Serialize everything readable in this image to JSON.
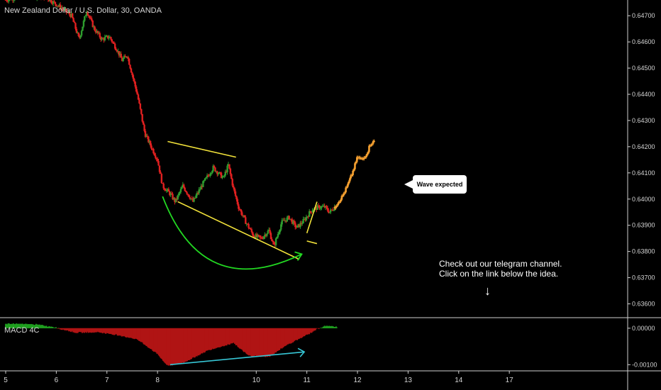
{
  "header": {
    "symbol": "New Zealand Dollar / U.S. Dollar, 30, OANDA"
  },
  "annotations": {
    "callout": "Wave expected",
    "note_line1": "Check out our telegram channel.",
    "note_line2": "Click on the link below the idea."
  },
  "colors": {
    "up": "#2e9e2e",
    "down": "#e02020",
    "projection": "#f5a030",
    "trendline": "#f2e23a",
    "curve": "#22d822",
    "divergence": "#37c7d6",
    "macd_pos": "#1f9e1f",
    "macd_neg": "#b01414",
    "grid": "#ffffff"
  },
  "icons": {
    "arrow": "down-arrow-icon"
  },
  "chart_data": [
    {
      "type": "candlestick",
      "title": "New Zealand Dollar / U.S. Dollar, 30, OANDA",
      "xlabel": "",
      "ylabel": "",
      "x_ticks": [
        "5",
        "6",
        "7",
        "8",
        "10",
        "11",
        "12",
        "13",
        "14",
        "17"
      ],
      "y_ticks": [
        "0.64700",
        "0.64600",
        "0.64500",
        "0.64400",
        "0.64300",
        "0.64200",
        "0.64100",
        "0.64000",
        "0.63900",
        "0.63800",
        "0.63700",
        "0.63600"
      ],
      "ylim": [
        0.6355,
        0.6476
      ],
      "xlim": [
        5,
        17.4
      ],
      "price_path": [
        [
          5.0,
          0.6476
        ],
        [
          5.4,
          0.6478
        ],
        [
          5.8,
          0.6477
        ],
        [
          6.1,
          0.6473
        ],
        [
          6.3,
          0.647
        ],
        [
          6.45,
          0.6461
        ],
        [
          6.6,
          0.6472
        ],
        [
          6.75,
          0.6465
        ],
        [
          6.9,
          0.6461
        ],
        [
          7.05,
          0.6462
        ],
        [
          7.2,
          0.6457
        ],
        [
          7.3,
          0.6453
        ],
        [
          7.4,
          0.6455
        ],
        [
          7.6,
          0.644
        ],
        [
          7.75,
          0.6425
        ],
        [
          7.85,
          0.6421
        ],
        [
          8.0,
          0.6415
        ],
        [
          8.1,
          0.6405
        ],
        [
          8.25,
          0.6402
        ],
        [
          8.35,
          0.6399
        ],
        [
          8.5,
          0.6405
        ],
        [
          8.7,
          0.6399
        ],
        [
          8.9,
          0.6406
        ],
        [
          9.1,
          0.6412
        ],
        [
          9.3,
          0.6408
        ],
        [
          9.4,
          0.6413
        ],
        [
          9.5,
          0.6404
        ],
        [
          9.6,
          0.6397
        ],
        [
          9.75,
          0.6391
        ],
        [
          9.9,
          0.6386
        ],
        [
          10.05,
          0.6385
        ],
        [
          10.2,
          0.6388
        ],
        [
          10.3,
          0.6382
        ],
        [
          10.45,
          0.6391
        ],
        [
          10.6,
          0.6393
        ],
        [
          10.75,
          0.6389
        ],
        [
          10.9,
          0.6392
        ],
        [
          11.05,
          0.6396
        ],
        [
          11.2,
          0.6397
        ],
        [
          11.3,
          0.6397
        ],
        [
          11.4,
          0.6395
        ],
        [
          11.5,
          0.6397
        ]
      ],
      "projection_path": [
        [
          11.5,
          0.6397
        ],
        [
          11.65,
          0.6401
        ],
        [
          11.75,
          0.6405
        ],
        [
          11.85,
          0.641
        ],
        [
          11.95,
          0.6416
        ],
        [
          12.05,
          0.6415
        ],
        [
          12.15,
          0.6418
        ],
        [
          12.2,
          0.6421
        ],
        [
          12.28,
          0.6422
        ]
      ],
      "trendlines": [
        {
          "name": "upper",
          "from": [
            8.2,
            0.6422
          ],
          "to": [
            9.55,
            0.6416
          ]
        },
        {
          "name": "lower",
          "from": [
            8.4,
            0.6399
          ],
          "to": [
            10.8,
            0.6377
          ]
        },
        {
          "name": "flag-left",
          "from": [
            10.95,
            0.6387
          ],
          "to": [
            11.15,
            0.6399
          ]
        },
        {
          "name": "flag-bottom",
          "from": [
            10.95,
            0.6384
          ],
          "to": [
            11.15,
            0.6383
          ]
        }
      ],
      "curve_arrow": {
        "from": [
          8.1,
          0.6401
        ],
        "mid": [
          8.9,
          0.6377
        ],
        "to": [
          10.85,
          0.6379
        ]
      }
    },
    {
      "type": "histogram",
      "title": "MACD 4C",
      "y_ticks": [
        "0.00000",
        "-0.00100"
      ],
      "ylim": [
        -0.00115,
        0.00025
      ],
      "histogram": [
        [
          5.0,
          0.00012
        ],
        [
          5.6,
          0.0001
        ],
        [
          6.0,
          1e-05
        ],
        [
          6.4,
          -0.00012
        ],
        [
          6.8,
          -0.0001
        ],
        [
          7.2,
          -0.00018
        ],
        [
          7.6,
          -0.0003
        ],
        [
          8.0,
          -0.0007
        ],
        [
          8.2,
          -0.00103
        ],
        [
          8.5,
          -0.00095
        ],
        [
          9.0,
          -0.0006
        ],
        [
          9.5,
          -0.0004
        ],
        [
          9.8,
          -0.00075
        ],
        [
          10.2,
          -0.00078
        ],
        [
          10.5,
          -0.0005
        ],
        [
          10.8,
          -0.00028
        ],
        [
          11.0,
          -0.00015
        ],
        [
          11.15,
          -2e-05
        ],
        [
          11.3,
          5e-05
        ],
        [
          11.55,
          4e-05
        ]
      ],
      "divergence_line": {
        "from": [
          8.25,
          -0.001
        ],
        "to": [
          10.9,
          -0.00065
        ]
      }
    }
  ]
}
